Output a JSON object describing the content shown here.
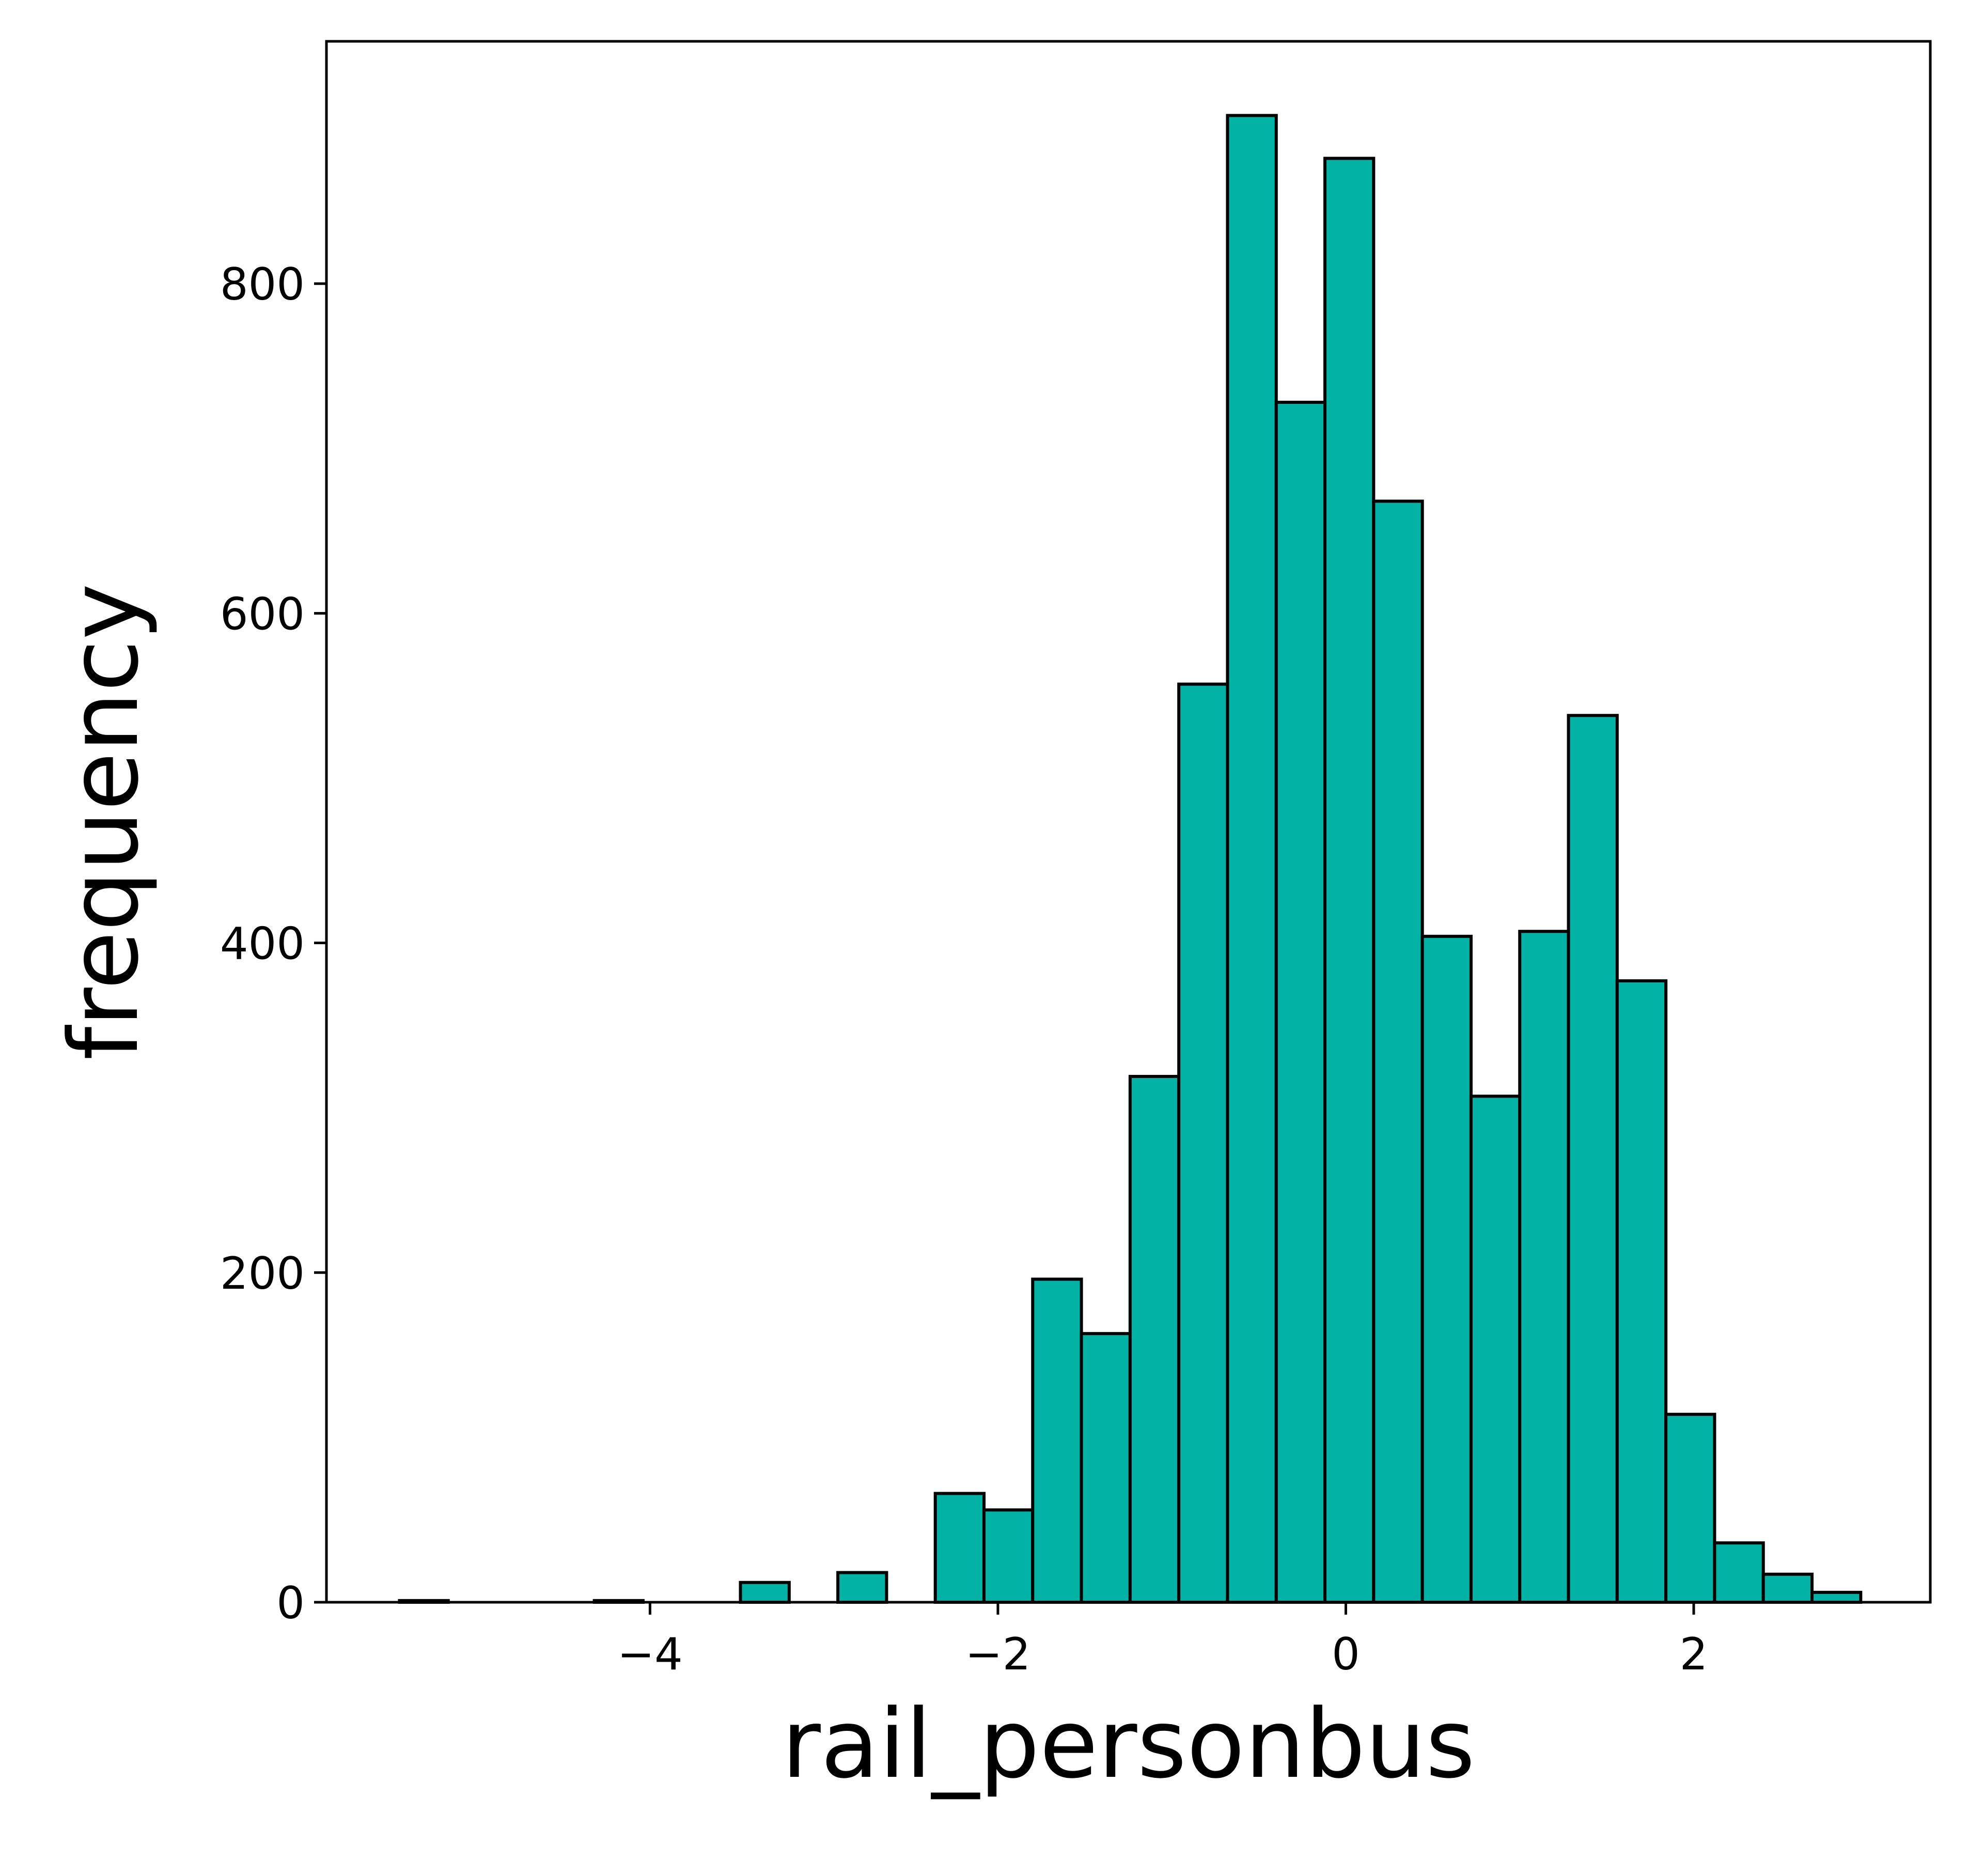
{
  "chart_data": {
    "type": "bar",
    "subtype": "histogram",
    "xlabel": "rail_personbus",
    "ylabel": "frequency",
    "bar_color": "#02b2a4",
    "edge_color": "#000000",
    "xlim": [
      -5.86,
      3.36
    ],
    "ylim": [
      0,
      947
    ],
    "xticks": [
      -4,
      -2,
      0,
      2
    ],
    "xtick_labels": [
      "−4",
      "−2",
      "0",
      "2"
    ],
    "yticks": [
      0,
      200,
      400,
      600,
      800
    ],
    "ytick_labels": [
      "0",
      "200",
      "400",
      "600",
      "800"
    ],
    "bin_edges": [
      -5.44,
      -5.16,
      -4.88,
      -4.6,
      -4.32,
      -4.04,
      -3.76,
      -3.48,
      -3.2,
      -2.92,
      -2.64,
      -2.36,
      -2.08,
      -1.8,
      -1.52,
      -1.24,
      -0.96,
      -0.68,
      -0.4,
      -0.12,
      0.16,
      0.44,
      0.72,
      1.0,
      1.28,
      1.56,
      1.84,
      2.12,
      2.4,
      2.68,
      2.96
    ],
    "values": [
      1,
      0,
      0,
      0,
      1,
      0,
      0,
      12,
      0,
      18,
      0,
      66,
      56,
      196,
      163,
      319,
      557,
      902,
      728,
      876,
      668,
      404,
      307,
      407,
      538,
      377,
      114,
      36,
      17,
      6
    ],
    "grid": false,
    "legend": "none"
  }
}
